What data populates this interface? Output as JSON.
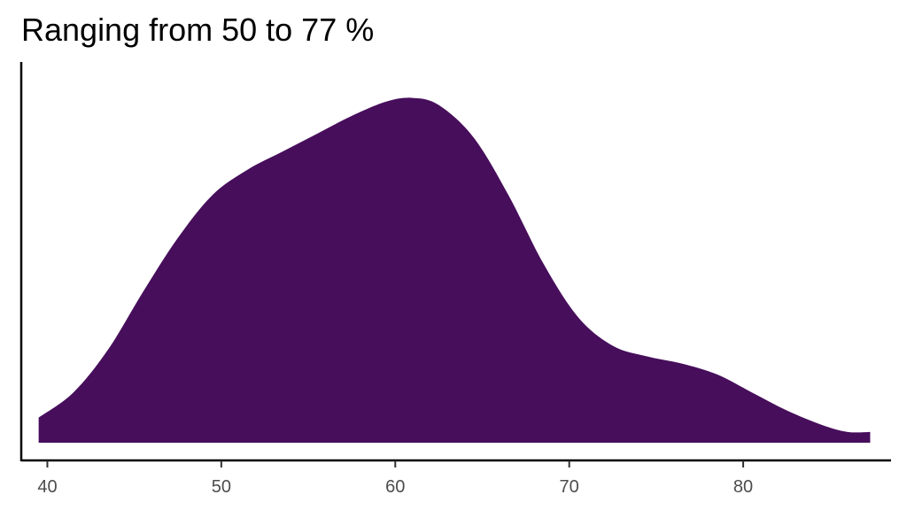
{
  "chart_data": {
    "type": "area",
    "title": "Ranging from 50 to 77 %",
    "xlabel": "",
    "ylabel": "",
    "xlim": [
      38.5,
      88.5
    ],
    "ylim": [
      0,
      1.06
    ],
    "x_ticks": [
      "40",
      "50",
      "60",
      "70",
      "80"
    ],
    "grid": false,
    "legend": "none",
    "fill_color": "#470E5C",
    "series": [
      {
        "x": [
          39.5,
          41.5,
          43.5,
          45.5,
          47.5,
          49.5,
          51.5,
          53.5,
          55.5,
          57.5,
          59.5,
          61.0,
          62.5,
          64.5,
          66.5,
          68.5,
          70.5,
          72.5,
          74.5,
          76.5,
          78.5,
          80.5,
          82.5,
          84.5,
          86.0,
          87.3
        ],
        "y": [
          0.07,
          0.14,
          0.26,
          0.42,
          0.57,
          0.69,
          0.76,
          0.81,
          0.86,
          0.91,
          0.95,
          0.96,
          0.94,
          0.85,
          0.69,
          0.5,
          0.35,
          0.27,
          0.24,
          0.22,
          0.19,
          0.14,
          0.09,
          0.05,
          0.03,
          0.03
        ]
      }
    ]
  }
}
